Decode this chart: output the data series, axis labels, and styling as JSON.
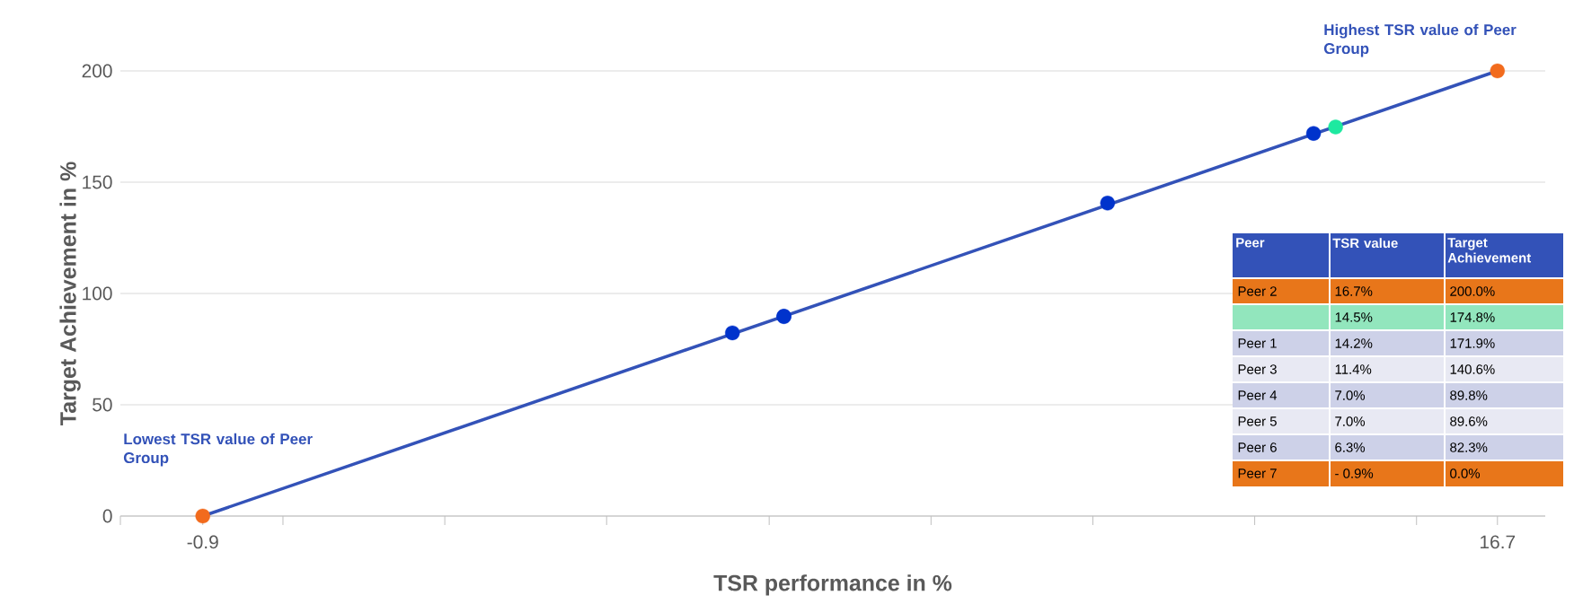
{
  "chart_data": [
    {
      "type": "scatter",
      "xlabel": "TSR performance in %",
      "ylabel": "Target Achievement in %",
      "xlim": [
        -2.02,
        17.35
      ],
      "ylim": [
        0,
        200
      ],
      "xticks": [
        {
          "value": -2.02,
          "label": null
        },
        -0.9,
        {
          "value": 0.19,
          "label": null
        },
        {
          "value": 2.39,
          "label": null
        },
        {
          "value": 4.59,
          "label": null
        },
        {
          "value": 6.8,
          "label": null
        },
        {
          "value": 9.0,
          "label": null
        },
        {
          "value": 11.2,
          "label": null
        },
        {
          "value": 13.4,
          "label": null
        },
        {
          "value": 15.6,
          "label": null
        },
        16.7
      ],
      "yticks": [
        0,
        50,
        100,
        150,
        200
      ],
      "grid": "y",
      "annotations": [
        "Highest TSR value of Peer Group",
        "Lowest TSR value of Peer Group"
      ],
      "series": [
        {
          "type": "line",
          "marker": "none",
          "color": "#3352b8",
          "x": [
            -0.9,
            16.7
          ],
          "values": [
            0,
            200
          ]
        },
        {
          "marker": "circle",
          "x": [
            16.7,
            14.5,
            14.2,
            11.4,
            7.0,
            7.0,
            6.3,
            -0.9
          ],
          "values": [
            200.0,
            174.8,
            171.9,
            140.6,
            89.8,
            89.6,
            82.3,
            0.0
          ],
          "colors": [
            "#f26b1d",
            "#1de9a0",
            "#0033cc",
            "#0033cc",
            "#0033cc",
            "#0033cc",
            "#0033cc",
            "#f26b1d"
          ]
        }
      ]
    },
    {
      "type": "other",
      "categories": [
        "Peer",
        "TSR value",
        "Target Achievement"
      ],
      "y_categories": [
        "Peer 2",
        null,
        "Peer 1",
        "Peer 3",
        "Peer 4",
        "Peer 5",
        "Peer 6",
        "Peer 7"
      ],
      "cell_labels": [
        [
          "16.7%",
          "200.0%"
        ],
        [
          "14.5%",
          "174.8%"
        ],
        [
          "14.2%",
          "171.9%"
        ],
        [
          "11.4%",
          "140.6%"
        ],
        [
          "7.0%",
          "89.8%"
        ],
        [
          "7.0%",
          "89.6%"
        ],
        [
          "6.3%",
          "82.3%"
        ],
        [
          "- 0.9%",
          "0.0%"
        ]
      ],
      "colors": [
        "#e8761a",
        "#92e6bd",
        "#cdd1e8",
        "#e8e9f3",
        "#cdd1e8",
        "#e8e9f3",
        "#cdd1e8",
        "#e8761a"
      ]
    }
  ]
}
